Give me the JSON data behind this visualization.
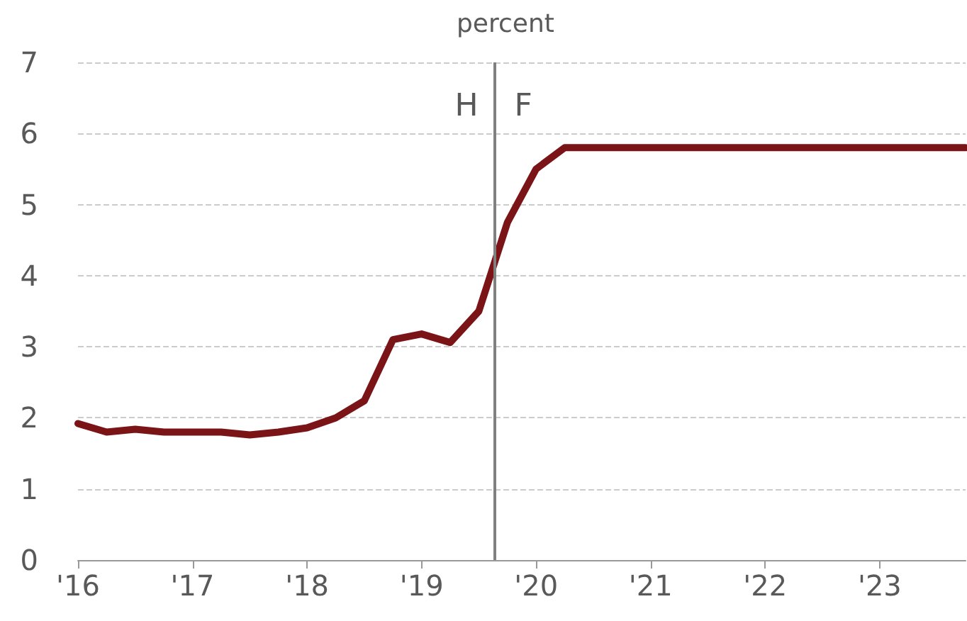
{
  "chart_data": {
    "type": "line",
    "ylabel": "percent",
    "x": [
      2016,
      2016.25,
      2016.5,
      2016.75,
      2017,
      2017.25,
      2017.5,
      2017.75,
      2018,
      2018.25,
      2018.5,
      2018.75,
      2019,
      2019.25,
      2019.5,
      2019.75,
      2020,
      2020.25,
      2020.5,
      2020.75,
      2021,
      2021.25,
      2021.5,
      2021.75,
      2022,
      2022.25,
      2022.5,
      2022.75,
      2023,
      2023.25,
      2023.5,
      2023.75
    ],
    "series": [
      {
        "color": "#7b1416",
        "values": [
          1.92,
          1.8,
          1.84,
          1.8,
          1.8,
          1.8,
          1.76,
          1.8,
          1.86,
          2.0,
          2.24,
          3.1,
          3.18,
          3.06,
          3.5,
          4.75,
          5.5,
          5.8,
          5.8,
          5.8,
          5.8,
          5.8,
          5.8,
          5.8,
          5.8,
          5.8,
          5.8,
          5.8,
          5.8,
          5.8,
          5.8,
          5.8
        ]
      }
    ],
    "xlim": [
      2016,
      2023.75
    ],
    "xticks": [
      {
        "value": 2016,
        "label": "'16"
      },
      {
        "value": 2017,
        "label": "'17"
      },
      {
        "value": 2018,
        "label": "'18"
      },
      {
        "value": 2019,
        "label": "'19"
      },
      {
        "value": 2020,
        "label": "'20"
      },
      {
        "value": 2021,
        "label": "'21"
      },
      {
        "value": 2022,
        "label": "'22"
      },
      {
        "value": 2023,
        "label": "'23"
      }
    ],
    "ylim": [
      0,
      7
    ],
    "yticks": [
      0,
      1,
      2,
      3,
      4,
      5,
      6,
      7
    ],
    "grid": "y",
    "marker": "none",
    "line_style": "solid",
    "ref_lines": [
      {
        "axis": "x",
        "value": 2019.64,
        "color": "#808080"
      }
    ],
    "annotations": [
      "H",
      "F"
    ]
  }
}
